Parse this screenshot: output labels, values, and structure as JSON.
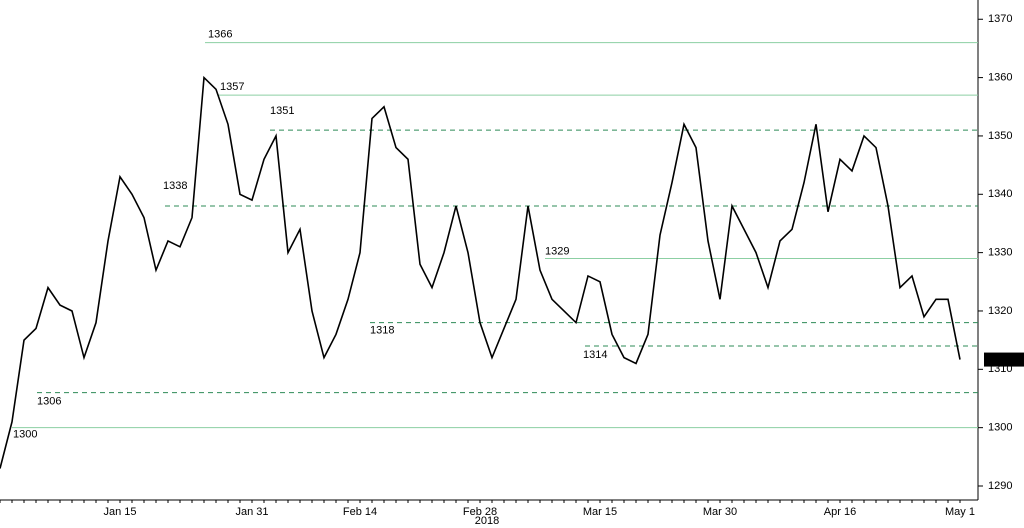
{
  "chart_data": {
    "type": "line",
    "categories": [
      null,
      null,
      null,
      null,
      null,
      null,
      null,
      null,
      null,
      null,
      "Jan 15",
      null,
      null,
      null,
      null,
      null,
      null,
      null,
      null,
      null,
      null,
      "Jan 31",
      null,
      null,
      null,
      null,
      null,
      null,
      null,
      null,
      "Feb 14",
      null,
      null,
      null,
      null,
      null,
      null,
      null,
      null,
      null,
      "Feb 28",
      null,
      null,
      null,
      null,
      null,
      null,
      null,
      null,
      null,
      "Mar 15",
      null,
      null,
      null,
      null,
      null,
      null,
      null,
      null,
      null,
      "Mar 30",
      null,
      null,
      null,
      null,
      null,
      null,
      null,
      null,
      null,
      "Apr 16",
      null,
      null,
      null,
      null,
      null,
      null,
      null,
      null,
      null,
      "May 1"
    ],
    "xlabel": "2018",
    "series": [
      {
        "color": "#000000",
        "values": [
          1293,
          1301,
          1315,
          1317,
          1324,
          1321,
          1320,
          1312,
          1318,
          1332,
          1343,
          1340,
          1336,
          1327,
          1332,
          1331,
          1336,
          1360,
          1358,
          1352,
          1340,
          1339,
          1346,
          1350,
          1330,
          1334,
          1320,
          1312,
          1316,
          1322,
          1330,
          1353,
          1355,
          1348,
          1346,
          1328,
          1324,
          1330,
          1338,
          1330,
          1318,
          1312,
          1317,
          1322,
          1338,
          1327,
          1322,
          1320,
          1318,
          1326,
          1325,
          1316,
          1312,
          1311,
          1316,
          1333,
          1342,
          1352,
          1348,
          1332,
          1322,
          1338,
          1334,
          1330,
          1324,
          1332,
          1334,
          1342,
          1352,
          1337,
          1346,
          1344,
          1350,
          1348,
          1338,
          1324,
          1326,
          1319,
          1322,
          1322,
          1311.67
        ]
      }
    ],
    "levels": [
      {
        "value": 1366,
        "style": "solid"
      },
      {
        "value": 1357,
        "style": "solid"
      },
      {
        "value": 1351,
        "style": "dashed"
      },
      {
        "value": 1338,
        "style": "dashed"
      },
      {
        "value": 1329,
        "style": "solid"
      },
      {
        "value": 1318,
        "style": "dashed"
      },
      {
        "value": 1314,
        "style": "dashed"
      },
      {
        "value": 1306,
        "style": "dashed"
      },
      {
        "value": 1300,
        "style": "solid"
      }
    ],
    "ylim": [
      1287.6,
      1373.3
    ],
    "yticks": [
      1290,
      1300,
      1310,
      1320,
      1330,
      1340,
      1350,
      1360,
      1370
    ],
    "solid_color": "#8ccfa3",
    "dashed_color": "#2e8b57"
  }
}
